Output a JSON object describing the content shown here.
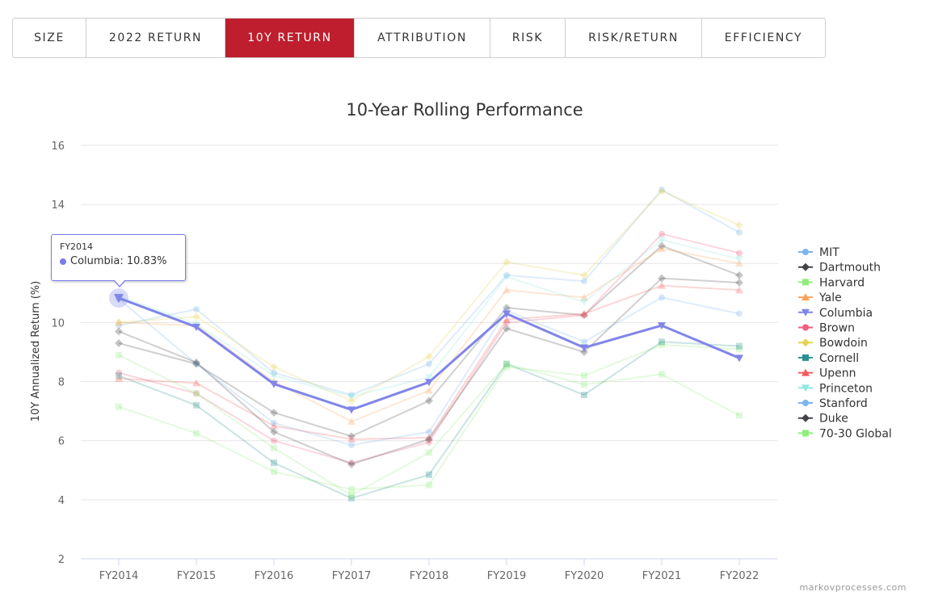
{
  "tabs": [
    {
      "label": "SIZE",
      "active": false
    },
    {
      "label": "2022 RETURN",
      "active": false
    },
    {
      "label": "10Y RETURN",
      "active": true
    },
    {
      "label": "ATTRIBUTION",
      "active": false
    },
    {
      "label": "RISK",
      "active": false
    },
    {
      "label": "RISK/RETURN",
      "active": false
    },
    {
      "label": "EFFICIENCY",
      "active": false
    }
  ],
  "credit": "markovprocesses.com",
  "tooltip": {
    "title": "FY2014",
    "text": "Columbia: 10.83%"
  },
  "chart_data": {
    "type": "line",
    "title": "10-Year Rolling Performance",
    "xlabel": "",
    "ylabel": "10Y Annualized Return (%)",
    "ylim": [
      2,
      16
    ],
    "yticks": [
      2,
      4,
      6,
      8,
      10,
      12,
      14,
      16
    ],
    "categories": [
      "FY2014",
      "FY2015",
      "FY2016",
      "FY2017",
      "FY2018",
      "FY2019",
      "FY2020",
      "FY2021",
      "FY2022"
    ],
    "legend_position": "right",
    "grid": true,
    "highlighted_series": "Columbia",
    "series": [
      {
        "name": "MIT",
        "color": "#7cb5ec",
        "marker": "circle",
        "values": [
          9.9,
          10.45,
          8.3,
          7.55,
          8.6,
          11.6,
          11.4,
          14.5,
          13.05
        ]
      },
      {
        "name": "Dartmouth",
        "color": "#434348",
        "marker": "diamond",
        "values": [
          9.3,
          8.6,
          6.95,
          6.15,
          7.35,
          10.5,
          10.25,
          12.6,
          11.6
        ]
      },
      {
        "name": "Harvard",
        "color": "#90ed7d",
        "marker": "square",
        "values": [
          7.15,
          6.25,
          4.95,
          4.35,
          4.5,
          8.5,
          8.2,
          9.25,
          9.1
        ]
      },
      {
        "name": "Yale",
        "color": "#f7a35c",
        "marker": "triangle",
        "values": [
          10.0,
          9.9,
          8.0,
          6.65,
          7.7,
          11.1,
          10.85,
          12.5,
          12.0
        ]
      },
      {
        "name": "Columbia",
        "color": "#8085e9",
        "marker": "triangle-down",
        "values": [
          10.83,
          9.85,
          7.92,
          7.05,
          7.98,
          10.3,
          9.15,
          9.9,
          8.8
        ]
      },
      {
        "name": "Brown",
        "color": "#f15c80",
        "marker": "circle",
        "values": [
          8.3,
          7.6,
          6.0,
          5.25,
          5.95,
          10.0,
          10.25,
          13.0,
          12.35
        ]
      },
      {
        "name": "Bowdoin",
        "color": "#e4d354",
        "marker": "diamond",
        "values": [
          10.0,
          10.2,
          8.5,
          7.35,
          8.85,
          12.05,
          11.6,
          14.45,
          13.3
        ]
      },
      {
        "name": "Cornell",
        "color": "#2b908f",
        "marker": "square",
        "values": [
          8.2,
          7.2,
          5.25,
          4.05,
          4.85,
          8.6,
          7.55,
          9.35,
          9.2
        ]
      },
      {
        "name": "Upenn",
        "color": "#f45b5b",
        "marker": "triangle",
        "values": [
          8.1,
          7.95,
          6.5,
          6.05,
          6.1,
          10.1,
          10.3,
          11.25,
          11.1
        ]
      },
      {
        "name": "Princeton",
        "color": "#91e8e1",
        "marker": "triangle-down",
        "values": [
          10.9,
          9.95,
          8.2,
          7.5,
          8.15,
          11.55,
          10.7,
          12.8,
          12.15
        ]
      },
      {
        "name": "Stanford",
        "color": "#7cb5ec",
        "marker": "circle",
        "values": [
          10.8,
          8.6,
          6.6,
          5.85,
          6.3,
          10.4,
          9.35,
          10.85,
          10.3
        ]
      },
      {
        "name": "Duke",
        "color": "#434348",
        "marker": "diamond",
        "values": [
          9.7,
          8.65,
          6.3,
          5.2,
          6.05,
          9.8,
          9.0,
          11.5,
          11.35
        ]
      },
      {
        "name": "70-30 Global",
        "color": "#90ed7d",
        "marker": "square",
        "values": [
          8.9,
          7.6,
          5.75,
          4.15,
          5.6,
          8.6,
          7.9,
          8.25,
          6.85
        ]
      }
    ]
  }
}
